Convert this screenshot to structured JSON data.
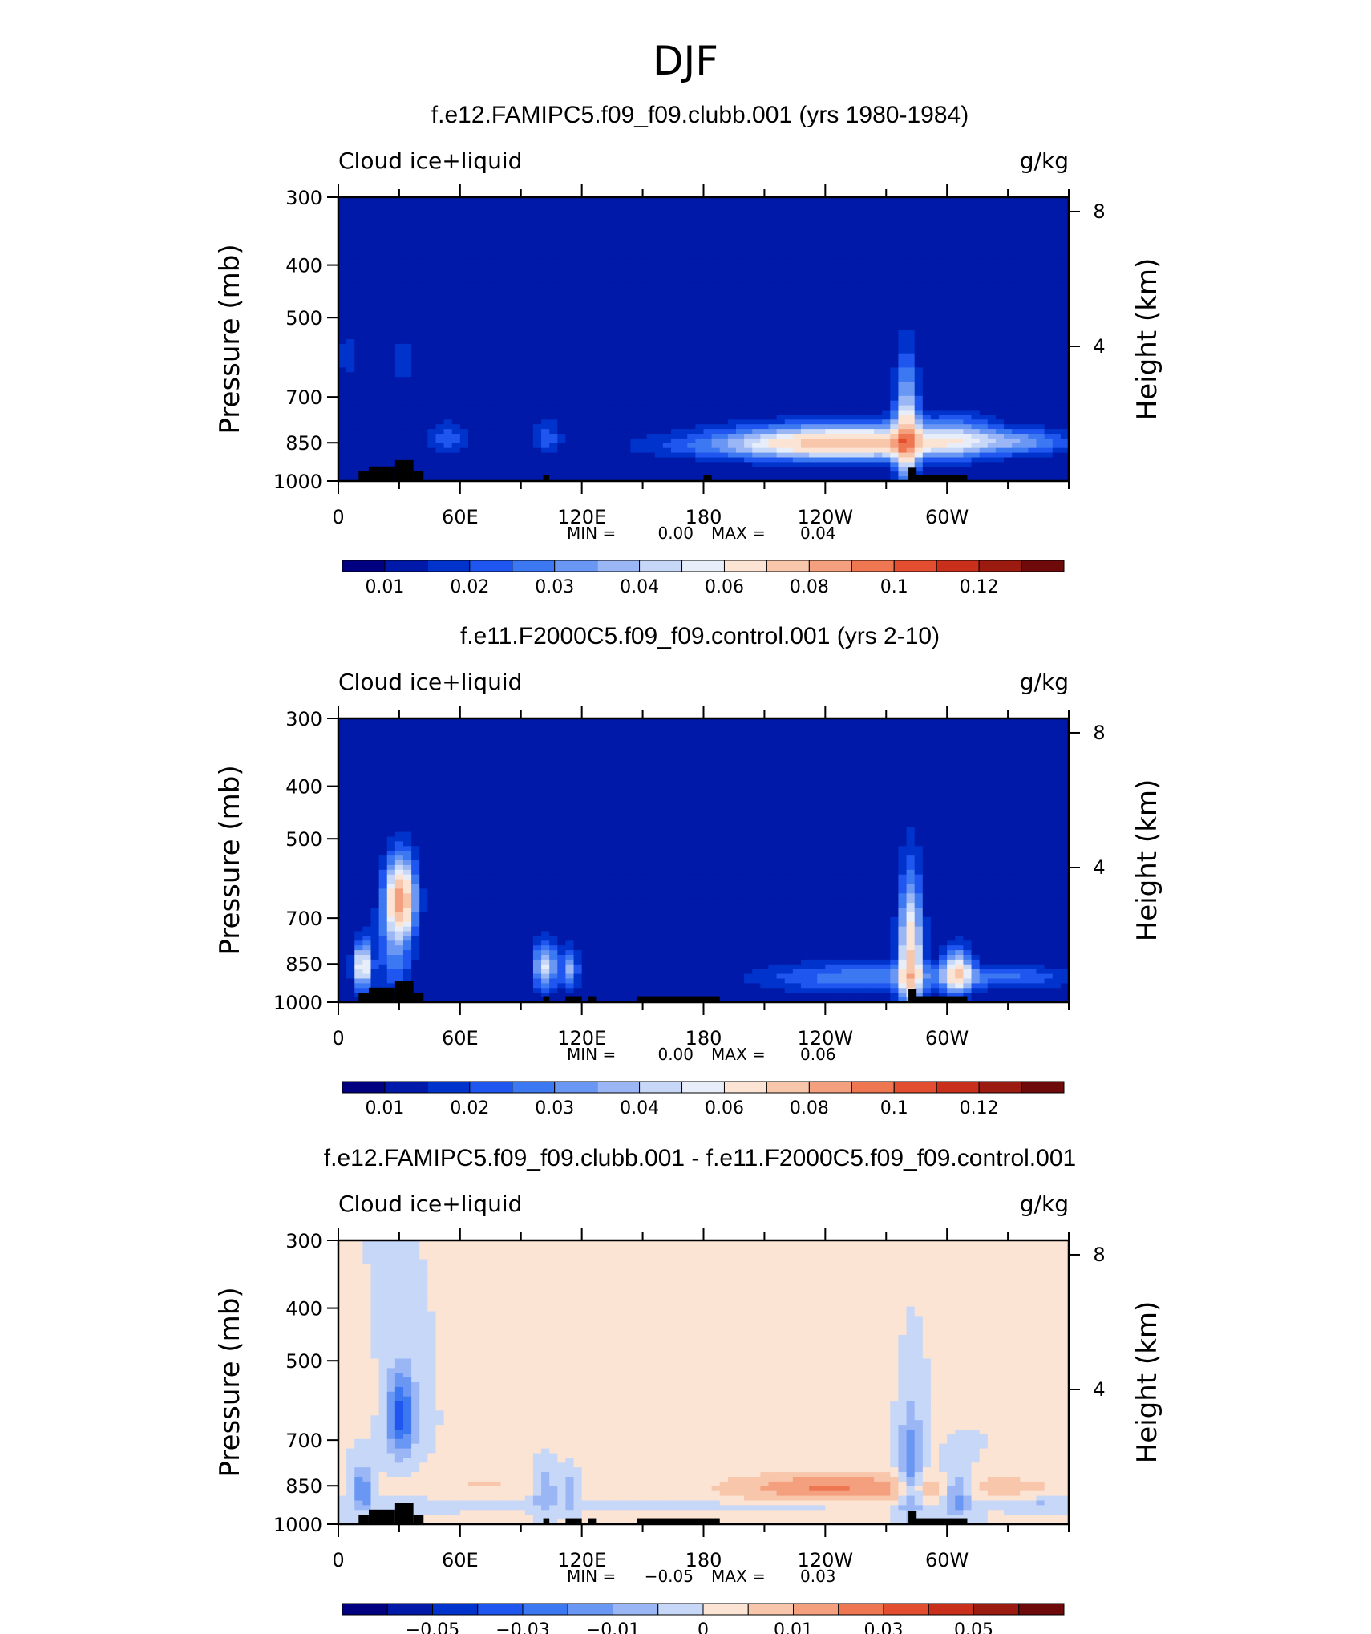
{
  "figure_title": "DJF",
  "colors": {
    "scale_sequential": [
      "#000080",
      "#0019a8",
      "#0033cc",
      "#1f56ef",
      "#3b78f2",
      "#6a96f4",
      "#9ab6f5",
      "#c6d7f8",
      "#e8eef9",
      "#fbe4d4",
      "#f8c6ab",
      "#f4a07e",
      "#ee7651",
      "#e24e2f",
      "#c8301c",
      "#9b1b10",
      "#6e0a0a"
    ],
    "scale_diverging": [
      "#000080",
      "#0019a8",
      "#0033cc",
      "#1f56ef",
      "#3b78f2",
      "#6a96f4",
      "#9ab6f5",
      "#c6d7f8",
      "#fbe4d4",
      "#f8c6ab",
      "#f4a07e",
      "#ee7651",
      "#e24e2f",
      "#c8301c",
      "#9b1b10",
      "#6e0a0a"
    ],
    "topography": "#000000"
  },
  "chart_data": [
    {
      "type": "heatmap",
      "title": "f.e12.FAMIPC5.f09_f09.clubb.001 (yrs 1980-1984)",
      "field_label": "Cloud ice+liquid",
      "units": "g/kg",
      "ylabel": "Pressure (mb)",
      "y2label": "Height (km)",
      "yticks": [
        300,
        400,
        500,
        700,
        850,
        1000
      ],
      "y2ticks": [
        8,
        4
      ],
      "xticks": [
        "0",
        "60E",
        "120E",
        "180",
        "120W",
        "60W"
      ],
      "xtick_lon": [
        0,
        60,
        120,
        180,
        240,
        300
      ],
      "xlim": [
        0,
        360
      ],
      "ylim": [
        1000,
        300
      ],
      "stats": {
        "min_label": "MIN =",
        "min": "0.00",
        "max_label": "MAX =",
        "max": "0.04"
      },
      "colorbar": {
        "scale": "sequential",
        "labels": [
          "0.01",
          "0.02",
          "0.03",
          "0.04",
          "0.06",
          "0.08",
          "0.1",
          "0.12"
        ],
        "label_bounds": [
          1,
          3,
          5,
          7,
          9,
          11,
          13,
          15
        ]
      },
      "features": [
        {
          "lon": 255,
          "p": 845,
          "dlon": 40,
          "dp": 45,
          "v": 0.04,
          "shape": "blob"
        },
        {
          "lon": 230,
          "p": 860,
          "dlon": 50,
          "dp": 35,
          "v": 0.02,
          "shape": "blob"
        },
        {
          "lon": 280,
          "p": 820,
          "dlon": 4,
          "dp": 150,
          "v": 0.04,
          "shape": "plume"
        },
        {
          "lon": 335,
          "p": 845,
          "dlon": 20,
          "dp": 30,
          "v": 0.018,
          "shape": "blob"
        },
        {
          "lon": 305,
          "p": 820,
          "dlon": 12,
          "dp": 60,
          "v": 0.012,
          "shape": "blob"
        },
        {
          "lon": 54,
          "p": 835,
          "dlon": 6,
          "dp": 40,
          "v": 0.015,
          "shape": "blob"
        },
        {
          "lon": 103,
          "p": 830,
          "dlon": 5,
          "dp": 45,
          "v": 0.012,
          "shape": "blob"
        },
        {
          "lon": 32,
          "p": 600,
          "dlon": 3,
          "dp": 40,
          "v": 0.01,
          "shape": "blob"
        },
        {
          "lon": 5,
          "p": 590,
          "dlon": 4,
          "dp": 40,
          "v": 0.009,
          "shape": "blob"
        }
      ],
      "topography": [
        [
          10,
          15,
          960
        ],
        [
          15,
          28,
          940
        ],
        [
          28,
          37,
          915
        ],
        [
          37,
          42,
          960
        ],
        [
          101,
          104,
          975
        ],
        [
          180,
          184,
          975
        ],
        [
          281,
          285,
          945
        ],
        [
          284,
          310,
          975
        ]
      ]
    },
    {
      "type": "heatmap",
      "title": "f.e11.F2000C5.f09_f09.control.001 (yrs 2-10)",
      "field_label": "Cloud ice+liquid",
      "units": "g/kg",
      "ylabel": "Pressure (mb)",
      "y2label": "Height (km)",
      "yticks": [
        300,
        400,
        500,
        700,
        850,
        1000
      ],
      "y2ticks": [
        8,
        4
      ],
      "xticks": [
        "0",
        "60E",
        "120E",
        "180",
        "120W",
        "60W"
      ],
      "xtick_lon": [
        0,
        60,
        120,
        180,
        240,
        300
      ],
      "xlim": [
        0,
        360
      ],
      "ylim": [
        1000,
        300
      ],
      "stats": {
        "min_label": "MIN =",
        "min": "0.00",
        "max_label": "MAX =",
        "max": "0.06"
      },
      "colorbar": {
        "scale": "sequential",
        "labels": [
          "0.01",
          "0.02",
          "0.03",
          "0.04",
          "0.06",
          "0.08",
          "0.1",
          "0.12"
        ],
        "label_bounds": [
          1,
          3,
          5,
          7,
          9,
          11,
          13,
          15
        ]
      },
      "features": [
        {
          "lon": 31,
          "p": 640,
          "dlon": 5,
          "dp": 70,
          "v": 0.055,
          "shape": "blob"
        },
        {
          "lon": 12,
          "p": 860,
          "dlon": 3,
          "dp": 60,
          "v": 0.045,
          "shape": "plume"
        },
        {
          "lon": 282,
          "p": 820,
          "dlon": 4,
          "dp": 160,
          "v": 0.05,
          "shape": "plume"
        },
        {
          "lon": 305,
          "p": 880,
          "dlon": 5,
          "dp": 60,
          "v": 0.04,
          "shape": "blob"
        },
        {
          "lon": 102,
          "p": 860,
          "dlon": 4,
          "dp": 60,
          "v": 0.035,
          "shape": "blob"
        },
        {
          "lon": 114,
          "p": 870,
          "dlon": 3,
          "dp": 55,
          "v": 0.025,
          "shape": "blob"
        },
        {
          "lon": 255,
          "p": 900,
          "dlon": 35,
          "dp": 40,
          "v": 0.018,
          "shape": "blob"
        },
        {
          "lon": 330,
          "p": 900,
          "dlon": 25,
          "dp": 30,
          "v": 0.014,
          "shape": "blob"
        },
        {
          "lon": 28,
          "p": 780,
          "dlon": 6,
          "dp": 120,
          "v": 0.02,
          "shape": "blob"
        }
      ],
      "topography": [
        [
          10,
          15,
          960
        ],
        [
          15,
          28,
          940
        ],
        [
          28,
          37,
          915
        ],
        [
          37,
          42,
          960
        ],
        [
          101,
          104,
          975
        ],
        [
          112,
          120,
          975
        ],
        [
          123,
          127,
          975
        ],
        [
          147,
          188,
          975
        ],
        [
          281,
          285,
          945
        ],
        [
          284,
          310,
          975
        ]
      ]
    },
    {
      "type": "heatmap",
      "title": "f.e12.FAMIPC5.f09_f09.clubb.001 - f.e11.F2000C5.f09_f09.control.001",
      "field_label": "Cloud ice+liquid",
      "units": "g/kg",
      "ylabel": "Pressure (mb)",
      "y2label": "Height (km)",
      "yticks": [
        300,
        400,
        500,
        700,
        850,
        1000
      ],
      "y2ticks": [
        8,
        4
      ],
      "xticks": [
        "0",
        "60E",
        "120E",
        "180",
        "120W",
        "60W"
      ],
      "xtick_lon": [
        0,
        60,
        120,
        180,
        240,
        300
      ],
      "xlim": [
        0,
        360
      ],
      "ylim": [
        1000,
        300
      ],
      "stats": {
        "min_label": "MIN =",
        "min": "−0.05",
        "max_label": "MAX =",
        "max": "0.03"
      },
      "colorbar": {
        "scale": "diverging",
        "labels": [
          "−0.05",
          "−0.03",
          "−0.01",
          "0",
          "0.01",
          "0.03",
          "0.05"
        ],
        "label_bounds": [
          2,
          4,
          6,
          8,
          10,
          12,
          14
        ]
      },
      "features": [
        {
          "lon": 180,
          "p": 620,
          "dlon": 90,
          "dp": 300,
          "v": 0.003,
          "shape": "wide"
        },
        {
          "lon": 250,
          "p": 860,
          "dlon": 45,
          "dp": 40,
          "v": 0.02,
          "shape": "blob"
        },
        {
          "lon": 240,
          "p": 850,
          "dlon": 25,
          "dp": 30,
          "v": 0.01,
          "shape": "blob"
        },
        {
          "lon": 70,
          "p": 840,
          "dlon": 25,
          "dp": 35,
          "v": 0.01,
          "shape": "blob"
        },
        {
          "lon": 335,
          "p": 850,
          "dlon": 20,
          "dp": 35,
          "v": 0.01,
          "shape": "blob"
        },
        {
          "lon": 5,
          "p": 600,
          "dlon": 10,
          "dp": 60,
          "v": 0.004,
          "shape": "blob"
        },
        {
          "lon": 31,
          "p": 630,
          "dlon": 5,
          "dp": 80,
          "v": -0.045,
          "shape": "blob"
        },
        {
          "lon": 12,
          "p": 860,
          "dlon": 3,
          "dp": 60,
          "v": -0.03,
          "shape": "plume"
        },
        {
          "lon": 282,
          "p": 800,
          "dlon": 4,
          "dp": 150,
          "v": -0.03,
          "shape": "plume"
        },
        {
          "lon": 305,
          "p": 880,
          "dlon": 5,
          "dp": 60,
          "v": -0.03,
          "shape": "blob"
        },
        {
          "lon": 102,
          "p": 860,
          "dlon": 4,
          "dp": 60,
          "v": -0.025,
          "shape": "blob"
        },
        {
          "lon": 114,
          "p": 870,
          "dlon": 3,
          "dp": 55,
          "v": -0.02,
          "shape": "blob"
        },
        {
          "lon": 200,
          "p": 925,
          "dlon": 70,
          "dp": 12,
          "v": -0.008,
          "shape": "blob"
        },
        {
          "lon": 345,
          "p": 915,
          "dlon": 15,
          "dp": 15,
          "v": -0.012,
          "shape": "blob"
        },
        {
          "lon": 40,
          "p": 915,
          "dlon": 30,
          "dp": 12,
          "v": -0.006,
          "shape": "blob"
        }
      ],
      "topography": [
        [
          10,
          15,
          960
        ],
        [
          15,
          28,
          940
        ],
        [
          28,
          37,
          915
        ],
        [
          37,
          42,
          960
        ],
        [
          101,
          104,
          975
        ],
        [
          112,
          120,
          975
        ],
        [
          123,
          127,
          975
        ],
        [
          147,
          188,
          975
        ],
        [
          281,
          285,
          945
        ],
        [
          284,
          310,
          975
        ]
      ]
    }
  ]
}
